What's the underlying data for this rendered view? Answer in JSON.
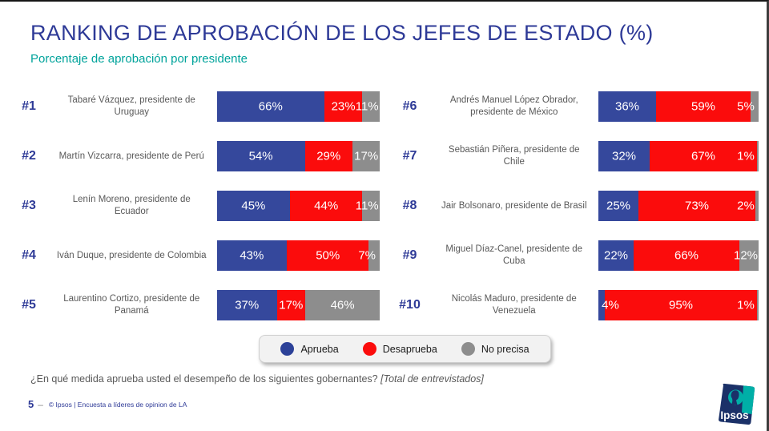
{
  "page": {
    "title": "RANKING DE APROBACIÓN DE LOS JEFES DE ESTADO (%)",
    "subtitle": "Porcentaje de aprobación por presidente",
    "question": "¿En qué medida aprueba usted el desempeño de los siguientes gobernantes?",
    "question_note": "[Total de entrevistados]",
    "page_number": "5",
    "page_dash": "–",
    "copyright": "© Ipsos | Encuesta a líderes de opinion de LA",
    "logo_text": "Ipsos"
  },
  "colors": {
    "approve": "#35489C",
    "disapprove": "#FB0C0C",
    "no_answer": "#8D8D8D",
    "blue_dark": "#2E3A97",
    "teal": "#00A39B",
    "gray_text": "#595959",
    "legend_approve": "#2C4198",
    "legend_disapprove": "#FB0C0C",
    "legend_no_answer": "#8D8D8D",
    "logo_navy": "#1B3168",
    "logo_teal": "#00AFA7"
  },
  "legend": [
    {
      "id": "aprueba",
      "label": "Aprueba",
      "color": "#2C4198"
    },
    {
      "id": "desaprueba",
      "label": "Desaprueba",
      "color": "#FB0C0C"
    },
    {
      "id": "no-precisa",
      "label": "No precisa",
      "color": "#8D8D8D"
    }
  ],
  "chart_data": {
    "type": "bar",
    "orientation": "horizontal",
    "stacked": true,
    "unit": "%",
    "xlim": [
      0,
      100
    ],
    "title": "RANKING DE APROBACIÓN DE LOS JEFES DE ESTADO (%)",
    "subtitle": "Porcentaje de aprobación por presidente",
    "series": [
      "Aprueba",
      "Desaprueba",
      "No precisa"
    ],
    "legend_position": "bottom-center",
    "items": [
      {
        "rank": "#1",
        "name": "Tabaré Vázquez, presidente de Uruguay",
        "values": [
          66,
          23,
          11
        ]
      },
      {
        "rank": "#2",
        "name": "Martín Vizcarra, presidente de Perú",
        "values": [
          54,
          29,
          17
        ]
      },
      {
        "rank": "#3",
        "name": "Lenín Moreno, presidente de Ecuador",
        "values": [
          45,
          44,
          11
        ]
      },
      {
        "rank": "#4",
        "name": "Iván Duque, presidente de Colombia",
        "values": [
          43,
          50,
          7
        ]
      },
      {
        "rank": "#5",
        "name": "Laurentino Cortizo, presidente de Panamá",
        "values": [
          37,
          17,
          46
        ]
      },
      {
        "rank": "#6",
        "name": "Andrés Manuel López Obrador, presidente de México",
        "values": [
          36,
          59,
          5
        ]
      },
      {
        "rank": "#7",
        "name": "Sebastián Piñera, presidente de Chile",
        "values": [
          32,
          67,
          1
        ]
      },
      {
        "rank": "#8",
        "name": "Jair Bolsonaro, presidente de Brasil",
        "values": [
          25,
          73,
          2
        ]
      },
      {
        "rank": "#9",
        "name": "Miguel Díaz-Canel, presidente de Cuba",
        "values": [
          22,
          66,
          12
        ]
      },
      {
        "rank": "#10",
        "name": "Nicolás Maduro, presidente de Venezuela",
        "values": [
          4,
          95,
          1
        ]
      }
    ]
  }
}
